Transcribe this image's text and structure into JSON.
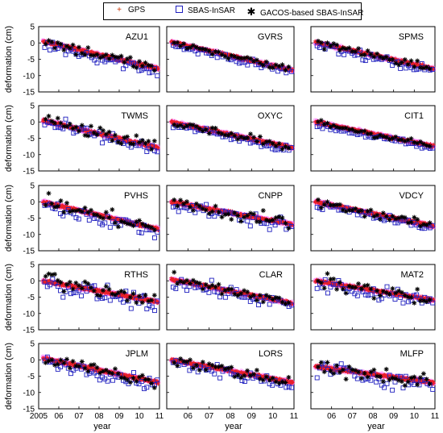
{
  "legend": [
    {
      "label": "GPS",
      "marker": "+",
      "color": "#cc3300"
    },
    {
      "label": "SBAS-InSAR",
      "marker": "square",
      "color": "#1f1fbf"
    },
    {
      "label": "GACOS-based SBAS-InSAR",
      "marker": "*",
      "color": "#000000"
    }
  ],
  "colors": {
    "gps": "#e8202a",
    "gps_halo": "#ff66ff",
    "sbas": "#1f1fbf",
    "gacos": "#000000",
    "axis": "#000000"
  },
  "chart_data": {
    "type": "scatter",
    "layout": "5x3 grid of small multiples",
    "ylabel": "deformation (cm)",
    "xlabel": "year",
    "ylim": [
      -15,
      5
    ],
    "xlim": [
      2005,
      2011
    ],
    "yticks": [
      5,
      0,
      -5,
      -10,
      -15
    ],
    "xtick_labels": [
      "2005",
      "06",
      "07",
      "08",
      "09",
      "10",
      "11"
    ],
    "series_names": [
      "GPS",
      "SBAS-InSAR",
      "GACOS-based SBAS-InSAR"
    ],
    "panels": [
      {
        "station": "AZU1",
        "gps": [
          [
            2005.2,
            0.5
          ],
          [
            2011.0,
            -8.0
          ]
        ],
        "noise": 1.8
      },
      {
        "station": "GVRS",
        "gps": [
          [
            2005.2,
            0.3
          ],
          [
            2011.0,
            -8.5
          ]
        ],
        "noise": 1.2
      },
      {
        "station": "SPMS",
        "gps": [
          [
            2005.2,
            0.2
          ],
          [
            2011.0,
            -8.0
          ]
        ],
        "noise": 1.4
      },
      {
        "station": "TWMS",
        "gps": [
          [
            2005.2,
            0.5
          ],
          [
            2011.0,
            -8.0
          ]
        ],
        "noise": 2.0
      },
      {
        "station": "OXYC",
        "gps": [
          [
            2005.2,
            0.0
          ],
          [
            2011.0,
            -8.0
          ]
        ],
        "noise": 1.2
      },
      {
        "station": "CIT1",
        "gps": [
          [
            2005.2,
            0.0
          ],
          [
            2011.0,
            -7.5
          ]
        ],
        "noise": 1.0
      },
      {
        "station": "PVHS",
        "gps": [
          [
            2005.2,
            0.0
          ],
          [
            2011.0,
            -8.5
          ]
        ],
        "noise": 2.2
      },
      {
        "station": "CNPP",
        "gps": [
          [
            2005.2,
            0.0
          ],
          [
            2011.0,
            -7.0
          ]
        ],
        "noise": 2.0
      },
      {
        "station": "VDCY",
        "gps": [
          [
            2005.2,
            0.0
          ],
          [
            2011.0,
            -7.5
          ]
        ],
        "noise": 1.2
      },
      {
        "station": "RTHS",
        "gps": [
          [
            2005.2,
            0.0
          ],
          [
            2011.0,
            -6.5
          ]
        ],
        "noise": 2.5
      },
      {
        "station": "CLAR",
        "gps": [
          [
            2005.2,
            0.5
          ],
          [
            2011.0,
            -7.0
          ]
        ],
        "noise": 2.0
      },
      {
        "station": "MAT2",
        "gps": [
          [
            2005.2,
            0.0
          ],
          [
            2011.0,
            -6.0
          ]
        ],
        "noise": 2.2
      },
      {
        "station": "JPLM",
        "gps": [
          [
            2005.2,
            0.5
          ],
          [
            2011.0,
            -7.0
          ]
        ],
        "noise": 1.8
      },
      {
        "station": "LORS",
        "gps": [
          [
            2005.2,
            0.0
          ],
          [
            2011.0,
            -7.0
          ]
        ],
        "noise": 1.8
      },
      {
        "station": "MLFP",
        "gps": [
          [
            2005.2,
            -2.0
          ],
          [
            2011.0,
            -7.0
          ]
        ],
        "noise": 2.5
      }
    ]
  }
}
